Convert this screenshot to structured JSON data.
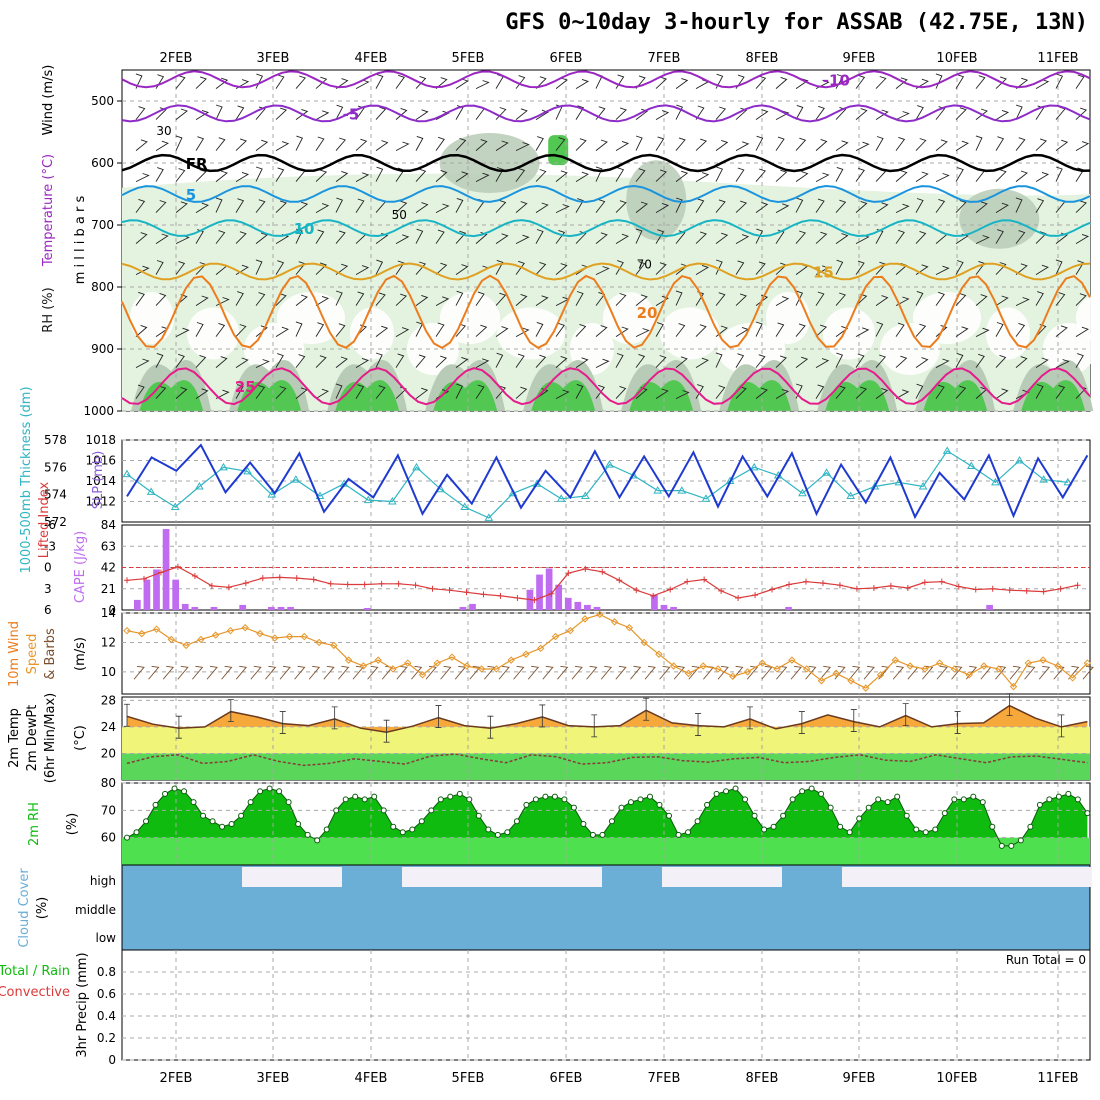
{
  "title": "GFS 0~10day 3-hourly for ASSAB (42.75E, 13N)",
  "colors": {
    "rh_light": "#e3f3e0",
    "rh_mid": "#b8cbb6",
    "rh_dark": "#7f9e80",
    "rh_green": "#52c752",
    "t_minus10": "#9b27c2",
    "t_minus5": "#8e2cc9",
    "t_fr": "#000000",
    "t_5": "#1b94de",
    "t_10": "#19b4c4",
    "t_15": "#e0a020",
    "t_20": "#ec7d1e",
    "t_25": "#e61b8c",
    "slp": "#1f3ad1",
    "thick": "#30b5c2",
    "cape": "#bf6cf0",
    "li": "#db3a3a",
    "wind": "#e6962a",
    "barb": "#7a4f2d",
    "temp_fill": "#f7a83b",
    "temp_line": "#6a3a1e",
    "band_yellow": "#f0f57a",
    "band_green": "#5ad65a",
    "rh2m": "#10bb10",
    "cloud": "#6baed6",
    "cloud_clear": "#f3f0f8"
  },
  "chart_data": [
    {
      "type": "heatmap",
      "panel": "upper_air",
      "ylabel": "m i l l i b a r s",
      "side_labels": [
        "Wind (m/s)",
        "Temperature (°C)",
        "RH (%)"
      ],
      "yticks": [
        500,
        600,
        700,
        800,
        900,
        1000
      ],
      "ylim": [
        1000,
        450
      ],
      "x_day_labels": [
        "2FEB",
        "3FEB",
        "4FEB",
        "5FEB",
        "6FEB",
        "7FEB",
        "8FEB",
        "9FEB",
        "10FEB",
        "11FEB"
      ],
      "isotherms": [
        {
          "label": "-10",
          "level_mb": 465
        },
        {
          "label": "-5",
          "level_mb": 520
        },
        {
          "label": "FR",
          "level_mb": 600
        },
        {
          "label": "5",
          "level_mb": 650
        },
        {
          "label": "10",
          "level_mb": 705
        },
        {
          "label": "15",
          "level_mb": 775
        },
        {
          "label": "20",
          "level_mb": 840
        },
        {
          "label": "25",
          "level_mb": 960
        }
      ],
      "rh_labels": [
        "30",
        "50",
        "70"
      ]
    },
    {
      "type": "line",
      "panel": "slp_thickness",
      "series": [
        {
          "name": "SLP (mb)",
          "ylim": [
            1010,
            1018
          ],
          "yticks": [
            1012,
            1014,
            1016,
            1018
          ],
          "values": [
            1012.5,
            1016.3,
            1015,
            1017.5,
            1012.9,
            1015.8,
            1012.8,
            1016.7,
            1011,
            1014.2,
            1012.4,
            1016.5,
            1010.8,
            1014.6,
            1011.8,
            1016.3,
            1011.4,
            1015,
            1012.4,
            1016.9,
            1012.4,
            1016.4,
            1012.5,
            1016.8,
            1011.5,
            1016.4,
            1012.5,
            1016.7,
            1010.8,
            1015.6,
            1011.9,
            1016.3,
            1010.5,
            1014.8,
            1012.2,
            1016.5,
            1010.6,
            1016.2,
            1012.4,
            1016.5
          ]
        },
        {
          "name": "1000-500mb Thickness (dm)",
          "ylim": [
            572,
            578
          ],
          "yticks": [
            572,
            574,
            576,
            578
          ],
          "values": [
            575.5,
            574.2,
            573.1,
            574.6,
            576,
            575.7,
            574,
            575.1,
            573.9,
            574.8,
            573.6,
            573.5,
            576,
            574.4,
            573.1,
            572.3,
            574.1,
            574.8,
            573.7,
            573.9,
            576.2,
            575.4,
            574.3,
            574.3,
            573.7,
            575,
            576,
            575.4,
            574.1,
            575.6,
            573.9,
            574.6,
            574.9,
            574.6,
            577.2,
            576.1,
            574.9,
            576.5,
            575.1,
            574.9
          ]
        }
      ]
    },
    {
      "type": "bar",
      "panel": "cape_li",
      "series": [
        {
          "name": "CAPE (J/kg)",
          "ylim": [
            0,
            84
          ],
          "yticks": [
            0,
            21,
            42,
            63,
            84
          ],
          "values": [
            10,
            30,
            40,
            80,
            30,
            6,
            3,
            0,
            3,
            0,
            0,
            5,
            0,
            0,
            3,
            3,
            3,
            0,
            0,
            0,
            0,
            0,
            0,
            0,
            2,
            0,
            0,
            0,
            0,
            0,
            0,
            0,
            0,
            0,
            3,
            6,
            0,
            0,
            0,
            0,
            0,
            20,
            35,
            41,
            25,
            12,
            8,
            5,
            3,
            0,
            0,
            0,
            0,
            0,
            15,
            5,
            3,
            0,
            0,
            0,
            0,
            0,
            0,
            0,
            0,
            0,
            0,
            0,
            3,
            0,
            0,
            0,
            0,
            0,
            0,
            0,
            0,
            0,
            0,
            0,
            0,
            0,
            0,
            0,
            0,
            0,
            0,
            0,
            0,
            5,
            0,
            0,
            0,
            0,
            0,
            0,
            0,
            0,
            0
          ]
        },
        {
          "name": "Lifted Index",
          "ylim": [
            6,
            -6
          ],
          "yticks": [
            -6,
            -3,
            0,
            3,
            6
          ],
          "values": [
            1.8,
            1.6,
            0.7,
            -0.1,
            1.2,
            2.6,
            2.8,
            2.2,
            1.5,
            1.4,
            1.5,
            1.7,
            2.3,
            2.4,
            2.4,
            2.3,
            2.3,
            2.5,
            3.0,
            3.2,
            3.5,
            3.8,
            4.0,
            4.3,
            4.6,
            3.7,
            0.8,
            0.2,
            0.6,
            1.8,
            3.2,
            4.0,
            3.1,
            2.0,
            1.7,
            3.3,
            4.3,
            3.9,
            3.1,
            2.4,
            2.0,
            2.2,
            2.5,
            3.0,
            2.9,
            2.6,
            2.9,
            2.1,
            2.0,
            2.7,
            3.1,
            3.0,
            3.2,
            3.3,
            3.4,
            3.0,
            2.5
          ]
        }
      ]
    },
    {
      "type": "line",
      "panel": "wind10m",
      "ylabel": "(m/s)",
      "yticks": [
        10,
        12,
        14
      ],
      "ylim": [
        8.5,
        14
      ],
      "values": [
        12.8,
        12.6,
        12.9,
        12.2,
        11.8,
        12.2,
        12.5,
        12.8,
        13,
        12.6,
        12.3,
        12.4,
        12.4,
        12,
        11.8,
        10.8,
        10.4,
        10.8,
        10.2,
        10.6,
        9.8,
        10.6,
        11,
        10.4,
        10.2,
        10.2,
        10.8,
        11.2,
        11.6,
        12.4,
        12.8,
        13.6,
        13.9,
        13.4,
        13,
        12,
        11.2,
        10.4,
        9.9,
        10.4,
        10.2,
        9.7,
        10,
        10.6,
        10.2,
        10.8,
        10.2,
        9.4,
        9.9,
        9.4,
        8.9,
        9.8,
        10.8,
        10.4,
        10.2,
        10.6,
        10.2,
        9.8,
        10.4,
        10.2,
        9,
        10.6,
        10.8,
        10.4,
        9.6,
        10.6
      ]
    },
    {
      "type": "area",
      "panel": "temp2m",
      "ylabel": "(°C)",
      "yticks": [
        20,
        24,
        28
      ],
      "ylim": [
        16,
        28.5
      ],
      "temp_values": [
        25.6,
        24.4,
        23.8,
        24,
        26.3,
        25.5,
        24.5,
        24.2,
        25.2,
        23.8,
        23.2,
        24.1,
        25.4,
        24.2,
        23.8,
        24.5,
        25.5,
        24.2,
        24,
        24.2,
        26.5,
        24.6,
        24.2,
        24,
        25.2,
        23.7,
        24.5,
        25.8,
        24.8,
        24,
        25.7,
        24,
        24.5,
        24.6,
        27.2,
        25.3,
        24,
        24.8
      ],
      "dewpoint_values": [
        18.5,
        19.5,
        19.8,
        18.5,
        18.8,
        19.8,
        18.8,
        18.2,
        18.5,
        19.2,
        18.8,
        18.4,
        19.6,
        19.9,
        19.2,
        18.6,
        19.8,
        19.5,
        18.4,
        18.6,
        19.4,
        19.5,
        18.9,
        18.7,
        19.2,
        19.4,
        18.6,
        18.8,
        19.4,
        19.8,
        19,
        18.8,
        19.8,
        19.2,
        18.6,
        19.5,
        19.6,
        19.1,
        18.6
      ]
    },
    {
      "type": "area",
      "panel": "rh2m",
      "label": "2m RH",
      "ylabel": "(%)",
      "yticks": [
        60,
        70,
        80
      ],
      "ylim": [
        50,
        80
      ],
      "values": [
        60,
        62,
        66,
        72,
        76,
        78,
        77,
        73,
        68,
        66,
        64,
        65,
        68,
        73,
        77,
        78,
        77,
        73,
        65,
        61,
        59,
        63,
        70,
        74,
        75,
        74,
        75,
        70,
        64,
        62,
        63,
        66,
        70,
        74,
        75,
        76,
        74,
        68,
        63,
        61,
        62,
        66,
        72,
        74,
        75,
        75,
        74,
        71,
        65,
        61,
        61,
        66,
        71,
        73,
        74,
        75,
        72,
        68,
        61,
        62,
        66,
        72,
        76,
        77,
        78,
        74,
        68,
        63,
        64,
        68,
        74,
        77,
        78,
        76,
        71,
        64,
        62,
        67,
        71,
        74,
        73,
        75,
        68,
        63,
        62,
        63,
        69,
        74,
        74,
        75,
        73,
        64,
        57,
        57,
        59,
        64,
        72,
        74,
        75,
        76,
        74,
        69
      ]
    },
    {
      "type": "bar",
      "panel": "cloud",
      "label": "Cloud Cover",
      "ylabel": "(%)",
      "levels": [
        "high",
        "middle",
        "low"
      ]
    },
    {
      "type": "bar",
      "panel": "precip",
      "ylabel": "3hr Precip (mm)",
      "side_labels": [
        "Total / Rain",
        "Convective"
      ],
      "yticks": [
        0,
        0.2,
        0.4,
        0.6,
        0.8
      ],
      "ylim": [
        0,
        1
      ],
      "values": [],
      "annotation": "Run Total = 0"
    }
  ]
}
